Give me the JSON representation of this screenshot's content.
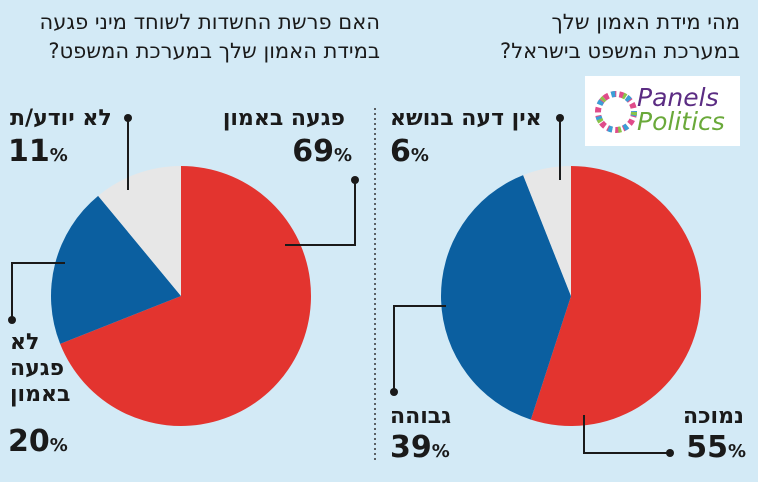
{
  "logo": {
    "line1": "Panels",
    "line2": "Politics"
  },
  "colors": {
    "red": "#e3342f",
    "blue": "#0b5fa0",
    "grey": "#e7e7e7",
    "background": "#d3eaf6"
  },
  "chart_data": [
    {
      "type": "pie",
      "title": "האם פרשת החשדות לשוחד מיני פגעה במידת האמון שלך במערכת המשפט?",
      "title_lines": [
        "האם פרשת החשדות לשוחד מיני פגעה",
        "במידת האמון שלך במערכת המשפט?"
      ],
      "slices": [
        {
          "label": "פגעה באמון",
          "label_lines": [
            "פגעה באמון"
          ],
          "value": 69,
          "display": "69",
          "color": "#e3342f"
        },
        {
          "label": "לא פגעה באמון",
          "label_lines": [
            "לא",
            "פגעה",
            "באמון"
          ],
          "value": 20,
          "display": "20",
          "color": "#0b5fa0"
        },
        {
          "label": "לא יודע/ת",
          "label_lines": [
            "לא יודע/ת"
          ],
          "value": 11,
          "display": "11",
          "color": "#e7e7e7"
        }
      ]
    },
    {
      "type": "pie",
      "title": "מהי מידת האמון שלך במערכת המשפט בישראל?",
      "title_lines": [
        "מהי מידת האמון שלך",
        "במערכת המשפט בישראל?"
      ],
      "slices": [
        {
          "label": "נמוכה",
          "label_lines": [
            "נמוכה"
          ],
          "value": 55,
          "display": "55",
          "color": "#e3342f"
        },
        {
          "label": "גבוהה",
          "label_lines": [
            "גבוהה"
          ],
          "value": 39,
          "display": "39",
          "color": "#0b5fa0"
        },
        {
          "label": "אין דעה בנושא",
          "label_lines": [
            "אין דעה בנושא"
          ],
          "value": 6,
          "display": "6",
          "color": "#e7e7e7"
        }
      ]
    }
  ],
  "percent_sign": "%"
}
